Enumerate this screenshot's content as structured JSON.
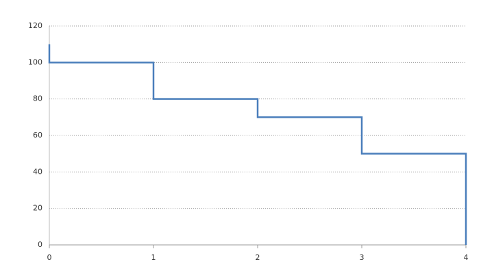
{
  "chart_data": {
    "type": "line",
    "x": [
      0,
      0,
      1,
      1,
      2,
      2,
      3,
      3,
      4,
      4
    ],
    "values": [
      110,
      100,
      100,
      80,
      80,
      70,
      70,
      50,
      50,
      0
    ],
    "color": "#4a7ebb",
    "xlim": [
      0,
      4
    ],
    "xticks": [
      0,
      1,
      2,
      3,
      4
    ],
    "ylim": [
      0,
      120
    ],
    "yticks": [
      0,
      20,
      40,
      60,
      80,
      100,
      120
    ],
    "grid": true
  }
}
